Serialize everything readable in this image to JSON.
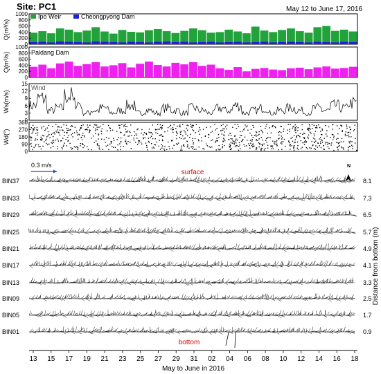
{
  "header": {
    "site": "Site: PC1",
    "date_range": "May 12 to June 17, 2016"
  },
  "colors": {
    "ipo_weir": "#22a23a",
    "cheongpyong": "#2020dd",
    "paldang": "#ee22ee",
    "wind": "#000000",
    "surface_label": "#dd0000",
    "bottom_label": "#dd0000",
    "scale_arrow": "#2244cc"
  },
  "chart_data": [
    {
      "type": "bar",
      "panel": "discharge-upstream",
      "ylabel": "Q(m³/s)",
      "ylim": [
        0,
        1000
      ],
      "yticks": [
        0,
        200,
        400,
        600,
        800,
        1000
      ],
      "series": [
        {
          "name": "Ipo Weir",
          "values": [
            70,
            80,
            60,
            90,
            80,
            70,
            60,
            90,
            80,
            70,
            60,
            80,
            70,
            60,
            80,
            90,
            70,
            80,
            60,
            70,
            80,
            60,
            70,
            80,
            60,
            70,
            80,
            60,
            70,
            80,
            70,
            60,
            80,
            70,
            60,
            80,
            70
          ]
        },
        {
          "name": "Cheongpyong Dam",
          "values": [
            380,
            430,
            360,
            520,
            480,
            400,
            450,
            560,
            420,
            350,
            470,
            410,
            390,
            460,
            500,
            430,
            370,
            440,
            520,
            460,
            380,
            400,
            480,
            420,
            360,
            580,
            450,
            400,
            470,
            520,
            430,
            380,
            560,
            600,
            440,
            480,
            420
          ]
        }
      ],
      "x": [
        "12",
        "13",
        "14",
        "15",
        "16",
        "17",
        "18",
        "19",
        "20",
        "21",
        "22",
        "23",
        "24",
        "25",
        "26",
        "27",
        "28",
        "29",
        "30",
        "31",
        "1",
        "2",
        "3",
        "4",
        "5",
        "6",
        "7",
        "8",
        "9",
        "10",
        "11",
        "12",
        "13",
        "14",
        "15",
        "16",
        "17"
      ]
    },
    {
      "type": "bar",
      "panel": "discharge-downstream",
      "ylabel": "Q(m³/s)",
      "ylim": [
        0,
        1000
      ],
      "yticks": [
        0,
        200,
        400,
        600,
        800,
        1000
      ],
      "series": [
        {
          "name": "Paldang Dam",
          "values": [
            350,
            420,
            300,
            460,
            520,
            380,
            440,
            500,
            360,
            400,
            470,
            330,
            450,
            520,
            410,
            360,
            480,
            430,
            500,
            380,
            420,
            300,
            250,
            340,
            200,
            280,
            310,
            260,
            240,
            300,
            320,
            270,
            330,
            360,
            290,
            310,
            350
          ]
        }
      ],
      "x": [
        "12",
        "13",
        "14",
        "15",
        "16",
        "17",
        "18",
        "19",
        "20",
        "21",
        "22",
        "23",
        "24",
        "25",
        "26",
        "27",
        "28",
        "29",
        "30",
        "31",
        "1",
        "2",
        "3",
        "4",
        "5",
        "6",
        "7",
        "8",
        "9",
        "10",
        "11",
        "12",
        "13",
        "14",
        "15",
        "16",
        "17"
      ]
    },
    {
      "type": "line",
      "panel": "wind-speed",
      "title": "Wind",
      "ylabel": "Ws(m/s)",
      "ylim": [
        0,
        15
      ],
      "yticks": [
        0,
        3,
        6,
        9,
        12,
        15
      ],
      "series": [
        {
          "name": "Wind",
          "values": [
            6,
            9,
            4,
            5,
            10,
            7,
            3,
            4,
            5,
            3,
            4,
            6,
            3,
            4,
            3,
            5,
            4,
            3,
            5,
            4,
            3,
            5,
            4,
            6,
            3,
            4,
            5,
            3,
            4,
            5,
            4,
            3,
            5,
            4,
            6,
            5,
            7
          ]
        }
      ],
      "x": [
        "12",
        "13",
        "14",
        "15",
        "16",
        "17",
        "18",
        "19",
        "20",
        "21",
        "22",
        "23",
        "24",
        "25",
        "26",
        "27",
        "28",
        "29",
        "30",
        "31",
        "1",
        "2",
        "3",
        "4",
        "5",
        "6",
        "7",
        "8",
        "9",
        "10",
        "11",
        "12",
        "13",
        "14",
        "15",
        "16",
        "17"
      ]
    },
    {
      "type": "scatter",
      "panel": "wind-direction",
      "ylabel": "Wd(°)",
      "ylim": [
        0,
        360
      ],
      "yticks": [
        0,
        90,
        180,
        270,
        360
      ],
      "scale_label": "0.3 m/s"
    },
    {
      "type": "line",
      "panel": "current-vectors",
      "surface_label": "surface",
      "bottom_label": "bottom",
      "north_label": "N",
      "ylabel_right": "Distance from bottom (m)",
      "xlabel": "May to June in 2016",
      "xticks": [
        "13",
        "15",
        "17",
        "19",
        "21",
        "23",
        "25",
        "27",
        "29",
        "31",
        "02",
        "04",
        "06",
        "08",
        "10",
        "12",
        "14",
        "16",
        "18"
      ],
      "bins": [
        {
          "name": "BIN37",
          "distance": "8.1"
        },
        {
          "name": "BIN33",
          "distance": "7.3"
        },
        {
          "name": "BIN29",
          "distance": "6.5"
        },
        {
          "name": "BIN25",
          "distance": "5.7"
        },
        {
          "name": "BIN21",
          "distance": "4.9"
        },
        {
          "name": "BIN17",
          "distance": "4.1"
        },
        {
          "name": "BIN13",
          "distance": "3.3"
        },
        {
          "name": "BIN09",
          "distance": "2.5"
        },
        {
          "name": "BIN05",
          "distance": "1.7"
        },
        {
          "name": "BIN01",
          "distance": "0.9"
        }
      ]
    }
  ]
}
